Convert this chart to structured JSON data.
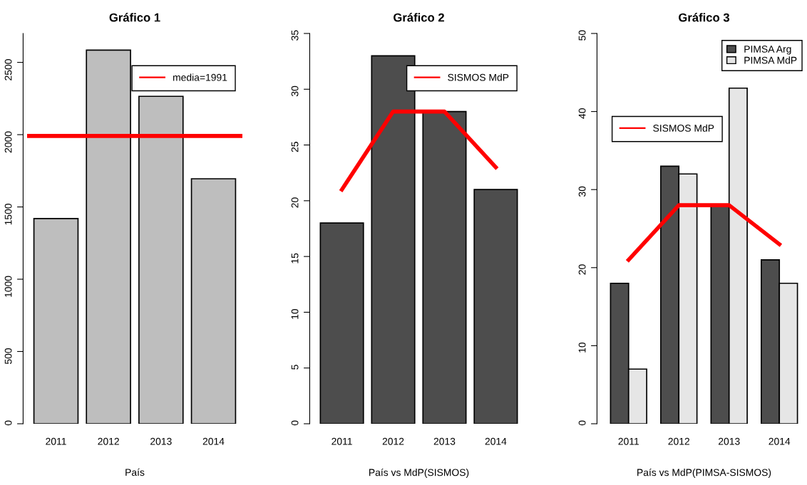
{
  "chart_data": [
    {
      "type": "bar",
      "title": "Gráfico 1",
      "xlabel": "País",
      "categories": [
        "2011",
        "2012",
        "2013",
        "2014"
      ],
      "series": [
        {
          "color": "#bebebe",
          "values": [
            1420,
            2585,
            2265,
            1695
          ]
        }
      ],
      "ylim": [
        0,
        2700
      ],
      "yticks": [
        0,
        500,
        1000,
        1500,
        2000,
        2500
      ],
      "ref_lines": [
        {
          "axis": "y",
          "value": 1991,
          "label": "media=1991",
          "color": "#ff0000"
        }
      ],
      "legend": "top right"
    },
    {
      "type": "bar",
      "title": "Gráfico 2",
      "xlabel": "País vs MdP(SISMOS)",
      "categories": [
        "2011",
        "2012",
        "2013",
        "2014"
      ],
      "series": [
        {
          "color": "#4d4d4d",
          "values": [
            18,
            33,
            28,
            21
          ]
        },
        {
          "type": "line",
          "name": "SISMOS MdP",
          "color": "#ff0000",
          "values": [
            21,
            28,
            28,
            23
          ]
        }
      ],
      "ylim": [
        0,
        35
      ],
      "yticks": [
        0,
        5,
        10,
        15,
        20,
        25,
        30,
        35
      ],
      "legend": "top right"
    },
    {
      "type": "bar",
      "title": "Gráfico 3",
      "xlabel": "País vs MdP(PIMSA-SISMOS)",
      "categories": [
        "2011",
        "2012",
        "2013",
        "2014"
      ],
      "series": [
        {
          "name": "PIMSA Arg",
          "color": "#4d4d4d",
          "values": [
            18,
            33,
            28,
            21
          ]
        },
        {
          "name": "PIMSA MdP",
          "color": "#e6e6e6",
          "values": [
            7,
            32,
            43,
            18
          ]
        },
        {
          "type": "line",
          "name": "SISMOS MdP",
          "color": "#ff0000",
          "values": [
            21,
            28,
            28,
            23
          ]
        }
      ],
      "ylim": [
        0,
        50
      ],
      "yticks": [
        0,
        10,
        20,
        30,
        40,
        50
      ],
      "legend": "top right"
    }
  ]
}
